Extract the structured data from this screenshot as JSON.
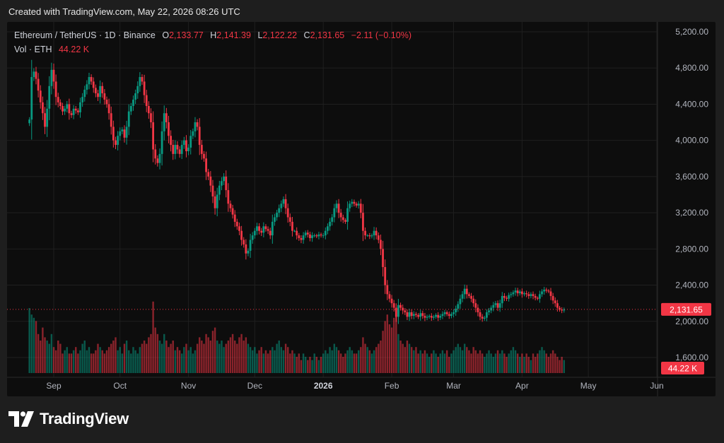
{
  "header": {
    "created_text": "Created with TradingView.com, May 22, 2026 08:26 UTC"
  },
  "legend": {
    "symbol": "Ethereum / TetherUS · 1D · Binance",
    "o_label": "O",
    "o_value": "2,133.77",
    "h_label": "H",
    "h_value": "2,141.39",
    "l_label": "L",
    "l_value": "2,122.22",
    "c_label": "C",
    "c_value": "2,131.65",
    "change": "−2.11 (−0.10%)",
    "vol_label": "Vol · ETH",
    "vol_value": "44.22 K"
  },
  "branding": {
    "name": "TradingView"
  },
  "colors": {
    "up": "#089981",
    "down": "#f23645",
    "background": "#0d0d0d",
    "text": "#b2b5be"
  },
  "chart_data": {
    "type": "candlestick",
    "title": "Ethereum / TetherUS · 1D · Binance",
    "x_start_date": "2025-08-21",
    "interval": "1D",
    "y_ticks": [
      "1,600.00",
      "2,000.00",
      "2,400.00",
      "2,800.00",
      "3,200.00",
      "3,600.00",
      "4,000.00",
      "4,400.00",
      "4,800.00",
      "5,200.00"
    ],
    "ylim": [
      1600,
      5200
    ],
    "x_tick_labels": [
      "Sep",
      "Oct",
      "Nov",
      "Dec",
      "2026",
      "Feb",
      "Mar",
      "Apr",
      "May",
      "Jun"
    ],
    "x_tick_dates": [
      "2025-09-01",
      "2025-10-01",
      "2025-11-01",
      "2025-12-01",
      "2026-01-01",
      "2026-02-01",
      "2026-03-01",
      "2026-04-01",
      "2026-05-01",
      "2026-06-01"
    ],
    "last_price": 2131.65,
    "last_price_label": "2,131.65",
    "last_volume_label": "44.22 K",
    "volume_label": "44.22 K",
    "close_series": [
      4230,
      4700,
      4760,
      4680,
      4550,
      4420,
      4300,
      4150,
      4350,
      4600,
      4780,
      4650,
      4480,
      4420,
      4380,
      4320,
      4350,
      4400,
      4300,
      4280,
      4350,
      4330,
      4310,
      4420,
      4480,
      4560,
      4620,
      4700,
      4650,
      4580,
      4520,
      4480,
      4600,
      4520,
      4450,
      4400,
      4300,
      4150,
      4000,
      3950,
      4050,
      4100,
      4120,
      4030,
      4150,
      4320,
      4380,
      4450,
      4520,
      4600,
      4700,
      4650,
      4500,
      4380,
      4300,
      4200,
      3900,
      3800,
      3750,
      3850,
      4100,
      4300,
      4200,
      4050,
      3950,
      3850,
      3950,
      3900,
      3850,
      3950,
      4000,
      3880,
      3920,
      4050,
      4100,
      4200,
      4150,
      3950,
      3850,
      3800,
      3650,
      3600,
      3500,
      3380,
      3250,
      3400,
      3500,
      3550,
      3600,
      3450,
      3300,
      3250,
      3180,
      3100,
      3050,
      3000,
      2900,
      2850,
      2750,
      2780,
      2900,
      2950,
      3000,
      3050,
      3000,
      2980,
      3050,
      3020,
      3000,
      2950,
      3100,
      3150,
      3200,
      3250,
      3300,
      3350,
      3250,
      3150,
      3100,
      3000,
      3000,
      2950,
      2920,
      2900,
      2950,
      2980,
      2960,
      2920,
      2950,
      2950,
      2940,
      2960,
      2950,
      2950,
      3000,
      3050,
      3100,
      3150,
      3250,
      3300,
      3200,
      3150,
      3120,
      3100,
      3250,
      3300,
      3320,
      3300,
      3280,
      3300,
      3200,
      3000,
      2950,
      2950,
      2940,
      2950,
      3000,
      2950,
      2900,
      2800,
      2600,
      2400,
      2300,
      2250,
      2200,
      2150,
      2050,
      2180,
      2150,
      2120,
      2100,
      2050,
      2100,
      2060,
      2080,
      2070,
      2050,
      2090,
      2060,
      2040,
      2050,
      2060,
      2040,
      2050,
      2070,
      2040,
      2060,
      2080,
      2100,
      2080,
      2060,
      2080,
      2100,
      2140,
      2190,
      2250,
      2300,
      2360,
      2300,
      2280,
      2250,
      2200,
      2150,
      2100,
      2050,
      2030,
      2040,
      2100,
      2120,
      2150,
      2180,
      2200,
      2150,
      2200,
      2280,
      2260,
      2250,
      2290,
      2300,
      2320,
      2340,
      2310,
      2330,
      2300,
      2310,
      2300,
      2280,
      2300,
      2280,
      2260,
      2250,
      2300,
      2330,
      2350,
      2340,
      2330,
      2280,
      2230,
      2200,
      2150,
      2130,
      2120,
      2131.65
    ],
    "volume_series": [
      1.0,
      0.9,
      0.85,
      0.8,
      0.6,
      0.5,
      0.7,
      0.55,
      0.5,
      0.45,
      0.6,
      0.4,
      0.35,
      0.5,
      0.45,
      0.3,
      0.35,
      0.4,
      0.3,
      0.3,
      0.35,
      0.4,
      0.3,
      0.35,
      0.45,
      0.5,
      0.35,
      0.4,
      0.3,
      0.3,
      0.35,
      0.45,
      0.4,
      0.35,
      0.3,
      0.35,
      0.4,
      0.45,
      0.5,
      0.55,
      0.35,
      0.4,
      0.3,
      0.45,
      0.5,
      0.35,
      0.3,
      0.4,
      0.35,
      0.3,
      0.4,
      0.45,
      0.5,
      0.45,
      0.55,
      0.6,
      1.1,
      0.7,
      0.6,
      0.5,
      0.45,
      0.6,
      0.5,
      0.4,
      0.45,
      0.5,
      0.35,
      0.4,
      0.35,
      0.3,
      0.4,
      0.45,
      0.35,
      0.4,
      0.3,
      0.35,
      0.45,
      0.55,
      0.5,
      0.45,
      0.6,
      0.55,
      0.5,
      0.65,
      0.7,
      0.5,
      0.45,
      0.5,
      0.4,
      0.45,
      0.5,
      0.55,
      0.6,
      0.5,
      0.45,
      0.55,
      0.6,
      0.5,
      0.55,
      0.45,
      0.4,
      0.35,
      0.4,
      0.3,
      0.35,
      0.4,
      0.3,
      0.35,
      0.3,
      0.35,
      0.4,
      0.35,
      0.45,
      0.5,
      0.4,
      0.35,
      0.45,
      0.4,
      0.3,
      0.35,
      0.3,
      0.25,
      0.3,
      0.2,
      0.3,
      0.25,
      0.2,
      0.25,
      0.2,
      0.3,
      0.25,
      0.2,
      0.25,
      0.3,
      0.35,
      0.3,
      0.4,
      0.35,
      0.45,
      0.4,
      0.35,
      0.3,
      0.25,
      0.3,
      0.35,
      0.4,
      0.35,
      0.3,
      0.3,
      0.35,
      0.4,
      0.55,
      0.45,
      0.4,
      0.35,
      0.3,
      0.35,
      0.4,
      0.45,
      0.5,
      0.65,
      0.8,
      0.9,
      0.75,
      0.7,
      0.85,
      1.0,
      0.6,
      0.5,
      0.45,
      0.4,
      0.5,
      0.45,
      0.4,
      0.35,
      0.4,
      0.3,
      0.35,
      0.3,
      0.35,
      0.3,
      0.25,
      0.3,
      0.35,
      0.3,
      0.25,
      0.3,
      0.35,
      0.3,
      0.35,
      0.25,
      0.3,
      0.35,
      0.4,
      0.45,
      0.4,
      0.35,
      0.45,
      0.4,
      0.35,
      0.3,
      0.4,
      0.35,
      0.3,
      0.35,
      0.3,
      0.25,
      0.3,
      0.35,
      0.3,
      0.25,
      0.3,
      0.35,
      0.3,
      0.35,
      0.3,
      0.25,
      0.3,
      0.35,
      0.4,
      0.35,
      0.3,
      0.25,
      0.3,
      0.25,
      0.3,
      0.25,
      0.2,
      0.3,
      0.25,
      0.3,
      0.35,
      0.4,
      0.35,
      0.3,
      0.25,
      0.3,
      0.35,
      0.3,
      0.25,
      0.2,
      0.25,
      0.2
    ],
    "grid": true
  }
}
